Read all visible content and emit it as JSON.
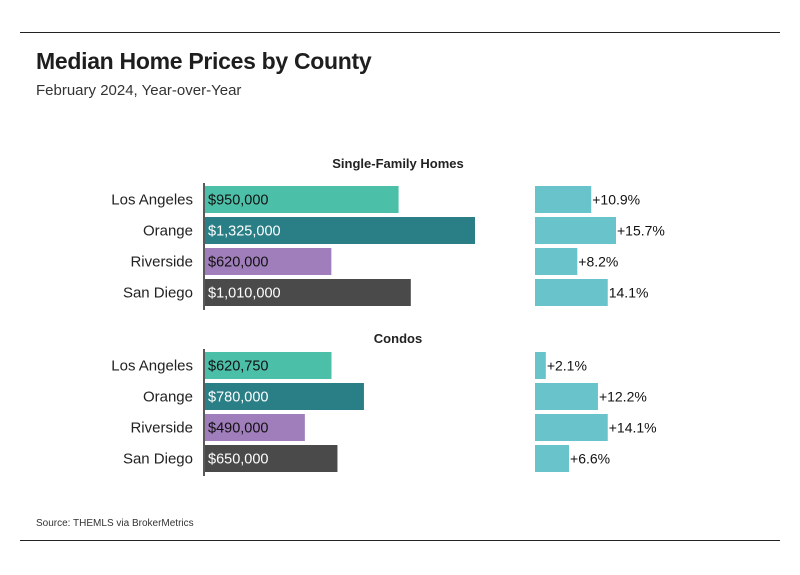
{
  "title": "Median Home Prices by County",
  "subtitle": "February 2024, Year-over-Year",
  "source": "Source:  THEMLS via BrokerMetrics",
  "colors": {
    "Los Angeles": "#4cbfa9",
    "Orange": "#2a7f86",
    "Riverside": "#a07dbb",
    "San Diego": "#4a4a4a",
    "change_bar": "#68c3cb",
    "axis": "#222222"
  },
  "chart_data": [
    {
      "type": "bar",
      "title": "Single-Family Homes",
      "categories": [
        "Los Angeles",
        "Orange",
        "Riverside",
        "San Diego"
      ],
      "series": [
        {
          "name": "",
          "values": [
            950000,
            1325000,
            620000,
            1010000
          ],
          "labels": [
            "$950,000",
            "$1,325,000",
            "$620,000",
            "$1,010,000"
          ]
        },
        {
          "name": "",
          "values": [
            10.9,
            15.7,
            8.2,
            14.1
          ],
          "labels": [
            "+10.9%",
            "+15.7%",
            "+8.2%",
            "14.1%"
          ]
        }
      ]
    },
    {
      "type": "bar",
      "title": "Condos",
      "categories": [
        "Los Angeles",
        "Orange",
        "Riverside",
        "San Diego"
      ],
      "series": [
        {
          "name": "",
          "values": [
            620750,
            780000,
            490000,
            650000
          ],
          "labels": [
            "$620,750",
            "$780,000",
            "$490,000",
            "$650,000"
          ]
        },
        {
          "name": "",
          "values": [
            2.1,
            12.2,
            14.1,
            6.6
          ],
          "labels": [
            "+2.1%",
            "+12.2%",
            "+14.1%",
            "+6.6%"
          ]
        }
      ]
    }
  ]
}
